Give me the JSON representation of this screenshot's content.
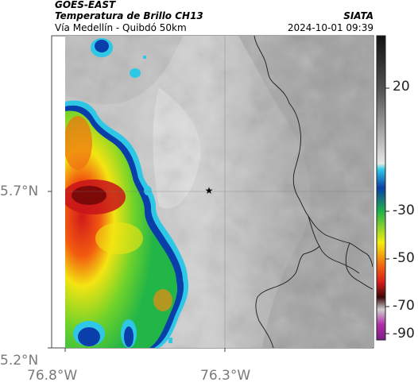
{
  "header": {
    "satellite": "GOES-EAST",
    "product": "Temperatura de Brillo CH13",
    "route": "Vía Medellín - Quibdó 50km",
    "organization": "SIATA",
    "timestamp": "2024-10-01 09:39"
  },
  "map": {
    "lat_labels": [
      "5.7°N",
      "5.2°N"
    ],
    "lon_labels": [
      "76.8°W",
      "76.3°W"
    ],
    "marker": "star-icon"
  },
  "colorbar": {
    "tick_labels": [
      "20",
      "-30",
      "-50",
      "-70",
      "-90"
    ],
    "colors": {
      "dark": "#111111",
      "cyan": "#2ec8e6",
      "blue": "#0a3ea8",
      "green": "#22b548",
      "yellow": "#f2ee10",
      "red": "#d81c1c",
      "darkred": "#3b0808",
      "magenta": "#b02ca8"
    }
  }
}
